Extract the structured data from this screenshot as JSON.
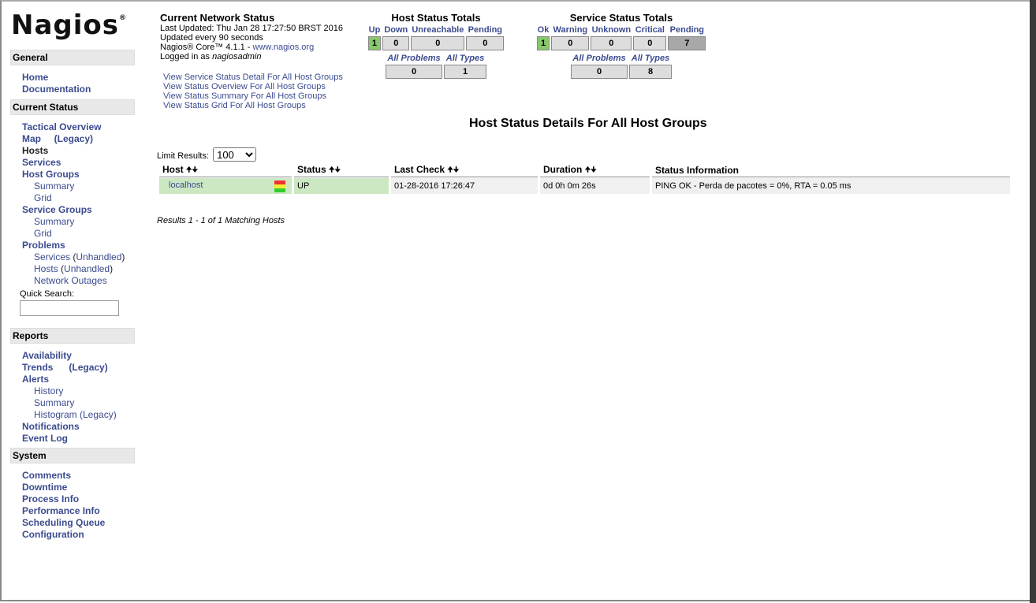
{
  "logo": "Nagios",
  "sidebar": {
    "general": {
      "title": "General",
      "items": [
        "Home",
        "Documentation"
      ]
    },
    "current": {
      "title": "Current Status",
      "tactical": "Tactical Overview",
      "map": "Map",
      "legacy": "(Legacy)",
      "hosts": "Hosts",
      "services": "Services",
      "host_groups": "Host Groups",
      "summary": "Summary",
      "grid": "Grid",
      "service_groups": "Service Groups",
      "problems": "Problems",
      "p_services": "Services",
      "p_hosts": "Hosts",
      "unhandled": "Unhandled",
      "outages": "Network Outages",
      "quick_search": "Quick Search:",
      "quick_search_value": ""
    },
    "reports": {
      "title": "Reports",
      "availability": "Availability",
      "trends": "Trends",
      "legacy": "(Legacy)",
      "alerts": "Alerts",
      "history": "History",
      "summary": "Summary",
      "histogram": "Histogram (Legacy)",
      "notifications": "Notifications",
      "event_log": "Event Log"
    },
    "system": {
      "title": "System",
      "items": [
        "Comments",
        "Downtime",
        "Process Info",
        "Performance Info",
        "Scheduling Queue",
        "Configuration"
      ]
    }
  },
  "status": {
    "title": "Current Network Status",
    "last_updated": "Last Updated: Thu Jan 28 17:27:50 BRST 2016",
    "interval": "Updated every 90 seconds",
    "version": "Nagios® Core™ 4.1.1 - ",
    "site": "www.nagios.org",
    "logged_prefix": "Logged in as ",
    "user": "nagiosadmin"
  },
  "links": [
    "View Service Status Detail For All Host Groups",
    "View Status Overview For All Host Groups",
    "View Status Summary For All Host Groups",
    "View Status Grid For All Host Groups"
  ],
  "host_totals": {
    "title": "Host Status Totals",
    "labels": [
      "Up",
      "Down",
      "Unreachable",
      "Pending"
    ],
    "values": [
      "1",
      "0",
      "0",
      "0"
    ],
    "all_problems": "All Problems",
    "all_types": "All Types",
    "problems": "0",
    "types": "1"
  },
  "service_totals": {
    "title": "Service Status Totals",
    "labels": [
      "Ok",
      "Warning",
      "Unknown",
      "Critical",
      "Pending"
    ],
    "values": [
      "1",
      "0",
      "0",
      "0",
      "7"
    ],
    "all_problems": "All Problems",
    "all_types": "All Types",
    "problems": "0",
    "types": "8"
  },
  "main": {
    "title": "Host Status Details For All Host Groups",
    "limit_label": "Limit Results:",
    "limit_value": "100",
    "columns": [
      "Host",
      "Status",
      "Last Check",
      "Duration",
      "Status Information"
    ],
    "rows": [
      {
        "host": "localhost",
        "status": "UP",
        "last_check": "01-28-2016 17:26:47",
        "duration": "0d 0h 0m 26s",
        "info": "PING OK - Perda de pacotes = 0%, RTA = 0.05 ms"
      }
    ],
    "results": "Results 1 - 1 of 1 Matching Hosts"
  },
  "colors": {
    "up": "#88c76c",
    "pending": "#a8a8a8",
    "link": "#3b4b8f"
  }
}
